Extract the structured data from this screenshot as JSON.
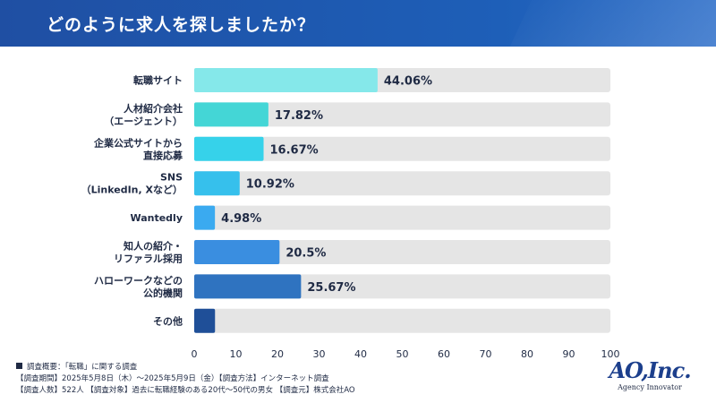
{
  "title": "どのように求人を探しましたか？",
  "colors": {
    "header": "#1f4fa3",
    "track": "#e5e5e5",
    "bars": [
      "#85e8ea",
      "#44d6d6",
      "#36d2ea",
      "#36c0ec",
      "#3aaaf0",
      "#3a8ee0",
      "#2f73c0",
      "#1f4f98"
    ]
  },
  "chart_data": {
    "type": "bar",
    "orientation": "horizontal",
    "categories": [
      [
        "転職サイト"
      ],
      [
        "人材紹介会社",
        "（エージェント）"
      ],
      [
        "企業公式サイトから",
        "直接応募"
      ],
      [
        "SNS",
        "（LinkedIn, Xなど）"
      ],
      [
        "Wantedly"
      ],
      [
        "知人の紹介・",
        "リファラル採用"
      ],
      [
        "ハローワークなどの",
        "公的機関"
      ],
      [
        "その他"
      ]
    ],
    "values": [
      44.06,
      17.82,
      16.67,
      10.92,
      4.98,
      20.5,
      25.67,
      5.0
    ],
    "value_labels": [
      "44.06%",
      "17.82%",
      "16.67%",
      "10.92%",
      "4.98%",
      "20.5%",
      "25.67%",
      ""
    ],
    "xlim": [
      0,
      100
    ],
    "xticks": [
      0,
      10,
      20,
      30,
      40,
      50,
      60,
      70,
      80,
      90,
      100
    ],
    "grid": false
  },
  "footer": {
    "line1": "調査概要：「転職」に関する調査",
    "line2": "【調査期間】2025年5月8日（木）～2025年5月9日（金）【調査方法】インターネット調査",
    "line3": "【調査人数】522人 【調査対象】過去に転職経験のある20代〜50代の男女 【調査元】株式会社AO"
  },
  "logo": {
    "mark": "AO,Inc.",
    "subtitle": "Agency Innovator"
  }
}
